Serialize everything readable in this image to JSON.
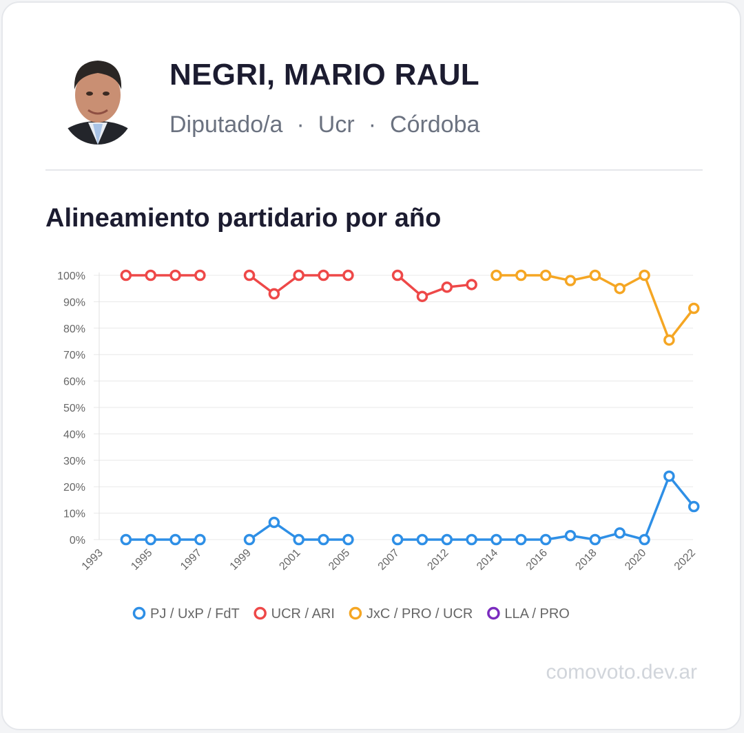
{
  "profile": {
    "name": "NEGRI, MARIO RAUL",
    "role": "Diputado/a",
    "party": "Ucr",
    "province": "Córdoba",
    "separator": "·"
  },
  "section_title": "Alineamiento partidario por año",
  "watermark": "comovoto.dev.ar",
  "chart_data": {
    "type": "line",
    "ylim": [
      0,
      100
    ],
    "y_ticks": [
      "0%",
      "10%",
      "20%",
      "30%",
      "40%",
      "50%",
      "60%",
      "70%",
      "80%",
      "90%",
      "100%"
    ],
    "x_labels": [
      "1993",
      "1995",
      "1997",
      "1999",
      "2001",
      "2005",
      "2007",
      "2012",
      "2014",
      "2016",
      "2018",
      "2020",
      "2022"
    ],
    "grid": true,
    "legend_position": "bottom",
    "series": [
      {
        "name": "PJ / UxP / FdT",
        "color": "#2e8fe6",
        "values": [
          null,
          0,
          0,
          0,
          0,
          null,
          0,
          6.5,
          0,
          0,
          0,
          null,
          0,
          0,
          0,
          0,
          0,
          0,
          0,
          1.5,
          0,
          2.5,
          0,
          24,
          12.5
        ]
      },
      {
        "name": "UCR / ARI",
        "color": "#ee4848",
        "values": [
          null,
          100,
          100,
          100,
          100,
          null,
          100,
          93,
          100,
          100,
          100,
          null,
          100,
          92,
          95.5,
          96.5,
          null,
          null,
          null,
          null,
          null,
          null,
          null,
          null,
          null
        ]
      },
      {
        "name": "JxC / PRO / UCR",
        "color": "#f5a623",
        "values": [
          null,
          null,
          null,
          null,
          null,
          null,
          null,
          null,
          null,
          null,
          null,
          null,
          null,
          null,
          null,
          null,
          100,
          100,
          100,
          98,
          100,
          95,
          100,
          75.5,
          87.5
        ]
      },
      {
        "name": "LLA / PRO",
        "color": "#7b2cbf",
        "values": []
      }
    ]
  }
}
